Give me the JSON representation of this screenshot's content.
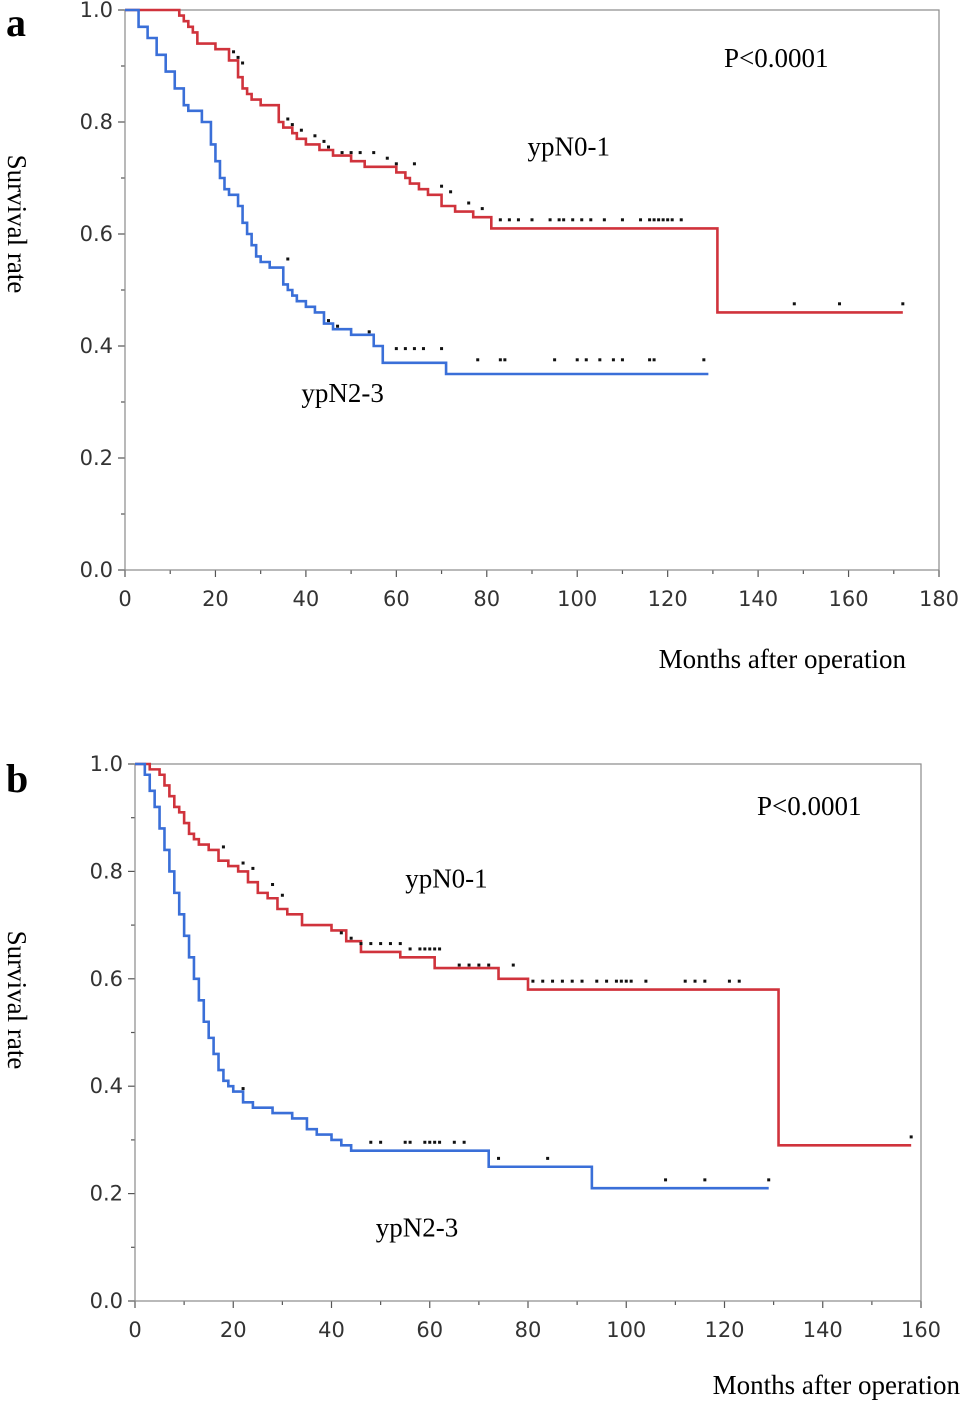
{
  "chart_data": [
    {
      "type": "line",
      "panel_label": "a",
      "title": "",
      "xlabel": "Months after operation",
      "ylabel": "Survival rate",
      "xlim": [
        0,
        180
      ],
      "ylim": [
        0,
        1
      ],
      "xticks": [
        0,
        20,
        40,
        60,
        80,
        100,
        120,
        140,
        160,
        180
      ],
      "xtick_labels": [
        "0",
        "20",
        "40",
        "60",
        "80",
        "100",
        "120",
        "140",
        "160",
        "180"
      ],
      "yticks": [
        0,
        0.2,
        0.4,
        0.6,
        0.8,
        1.0
      ],
      "ytick_labels": [
        "0.0",
        "0.2",
        "0.4",
        "0.6",
        "0.8",
        "1.0"
      ],
      "annotation": "P<0.0001",
      "series": [
        {
          "name": "ypN0-1",
          "color": "#d0333c",
          "step_x": [
            0,
            11,
            12,
            13,
            14,
            15,
            16,
            20,
            23,
            25,
            26,
            27,
            28,
            30,
            34,
            35,
            37,
            38,
            40,
            43,
            46,
            50,
            53,
            57,
            60,
            62,
            63,
            65,
            67,
            70,
            73,
            77,
            81,
            131,
            172
          ],
          "step_y": [
            1.0,
            1.0,
            0.99,
            0.98,
            0.97,
            0.96,
            0.94,
            0.93,
            0.91,
            0.88,
            0.86,
            0.85,
            0.84,
            0.83,
            0.8,
            0.79,
            0.78,
            0.77,
            0.76,
            0.75,
            0.74,
            0.73,
            0.72,
            0.72,
            0.71,
            0.7,
            0.69,
            0.68,
            0.67,
            0.65,
            0.64,
            0.63,
            0.61,
            0.46,
            0.46
          ],
          "censor_x": [
            24,
            25,
            26,
            36,
            37,
            39,
            42,
            44,
            45,
            48,
            50,
            52,
            55,
            58,
            60,
            64,
            70,
            72,
            76,
            79,
            83,
            85,
            87,
            90,
            94,
            96,
            97,
            99,
            101,
            103,
            106,
            110,
            114,
            116,
            117,
            118,
            119,
            120,
            121,
            123,
            148,
            158,
            172
          ],
          "censor_y": [
            0.92,
            0.91,
            0.9,
            0.8,
            0.79,
            0.78,
            0.77,
            0.76,
            0.75,
            0.74,
            0.74,
            0.74,
            0.74,
            0.73,
            0.72,
            0.72,
            0.68,
            0.67,
            0.65,
            0.64,
            0.62,
            0.62,
            0.62,
            0.62,
            0.62,
            0.62,
            0.62,
            0.62,
            0.62,
            0.62,
            0.62,
            0.62,
            0.62,
            0.62,
            0.62,
            0.62,
            0.62,
            0.62,
            0.62,
            0.62,
            0.47,
            0.47,
            0.47
          ]
        },
        {
          "name": "ypN2-3",
          "color": "#3a6fd8",
          "step_x": [
            0,
            3,
            5,
            7,
            9,
            11,
            13,
            14,
            17,
            19,
            20,
            21,
            22,
            23,
            25,
            26,
            27,
            28,
            29,
            30,
            32,
            35,
            36,
            37,
            38,
            40,
            42,
            44,
            46,
            50,
            55,
            57,
            71,
            129
          ],
          "step_y": [
            1.0,
            0.97,
            0.95,
            0.92,
            0.89,
            0.86,
            0.83,
            0.82,
            0.8,
            0.76,
            0.73,
            0.7,
            0.68,
            0.67,
            0.65,
            0.62,
            0.6,
            0.58,
            0.56,
            0.55,
            0.54,
            0.51,
            0.5,
            0.49,
            0.48,
            0.47,
            0.46,
            0.44,
            0.43,
            0.42,
            0.4,
            0.37,
            0.35,
            0.35
          ],
          "censor_x": [
            36,
            45,
            47,
            54,
            60,
            62,
            64,
            66,
            70,
            78,
            83,
            84,
            95,
            100,
            102,
            105,
            108,
            110,
            116,
            117,
            128
          ],
          "censor_y": [
            0.55,
            0.44,
            0.43,
            0.42,
            0.39,
            0.39,
            0.39,
            0.39,
            0.39,
            0.37,
            0.37,
            0.37,
            0.37,
            0.37,
            0.37,
            0.37,
            0.37,
            0.37,
            0.37,
            0.37,
            0.37
          ]
        }
      ],
      "labels": [
        {
          "text": "ypN0-1",
          "x": 89,
          "y": 0.74
        },
        {
          "text": "ypN2-3",
          "x": 39,
          "y": 0.3
        }
      ]
    },
    {
      "type": "line",
      "panel_label": "b",
      "title": "",
      "xlabel": "Months after operation",
      "ylabel": "Survival rate",
      "xlim": [
        0,
        160
      ],
      "ylim": [
        0,
        1
      ],
      "xticks": [
        0,
        20,
        40,
        60,
        80,
        100,
        120,
        140,
        160
      ],
      "xtick_labels": [
        "0",
        "20",
        "40",
        "60",
        "80",
        "100",
        "120",
        "140",
        "160"
      ],
      "yticks": [
        0,
        0.2,
        0.4,
        0.6,
        0.8,
        1.0
      ],
      "ytick_labels": [
        "0.0",
        "0.2",
        "0.4",
        "0.6",
        "0.8",
        "1.0"
      ],
      "annotation": "P<0.0001",
      "series": [
        {
          "name": "ypN0-1",
          "color": "#d0333c",
          "step_x": [
            0,
            3,
            5,
            6,
            7,
            8,
            9,
            10,
            11,
            12,
            13,
            15,
            17,
            19,
            21,
            23,
            25,
            27,
            29,
            31,
            34,
            40,
            43,
            46,
            54,
            61,
            74,
            80,
            131,
            158
          ],
          "step_y": [
            1.0,
            0.99,
            0.98,
            0.96,
            0.94,
            0.92,
            0.91,
            0.89,
            0.87,
            0.86,
            0.85,
            0.84,
            0.82,
            0.81,
            0.8,
            0.78,
            0.76,
            0.75,
            0.73,
            0.72,
            0.7,
            0.69,
            0.67,
            0.65,
            0.64,
            0.62,
            0.6,
            0.58,
            0.29,
            0.29
          ],
          "censor_x": [
            18,
            22,
            24,
            28,
            30,
            42,
            44,
            46,
            48,
            50,
            52,
            54,
            56,
            58,
            59,
            60,
            61,
            62,
            66,
            68,
            70,
            72,
            77,
            81,
            83,
            85,
            87,
            89,
            91,
            94,
            96,
            98,
            99,
            100,
            101,
            104,
            112,
            114,
            116,
            121,
            123,
            158
          ],
          "censor_y": [
            0.84,
            0.81,
            0.8,
            0.77,
            0.75,
            0.68,
            0.67,
            0.66,
            0.66,
            0.66,
            0.66,
            0.66,
            0.65,
            0.65,
            0.65,
            0.65,
            0.65,
            0.65,
            0.62,
            0.62,
            0.62,
            0.62,
            0.62,
            0.59,
            0.59,
            0.59,
            0.59,
            0.59,
            0.59,
            0.59,
            0.59,
            0.59,
            0.59,
            0.59,
            0.59,
            0.59,
            0.59,
            0.59,
            0.59,
            0.59,
            0.59,
            0.3
          ]
        },
        {
          "name": "ypN2-3",
          "color": "#3a6fd8",
          "step_x": [
            0,
            2,
            3,
            4,
            5,
            6,
            7,
            8,
            9,
            10,
            11,
            12,
            13,
            14,
            15,
            16,
            17,
            18,
            19,
            20,
            22,
            24,
            28,
            32,
            35,
            37,
            40,
            42,
            44,
            72,
            93,
            129
          ],
          "step_y": [
            1.0,
            0.98,
            0.95,
            0.92,
            0.88,
            0.84,
            0.8,
            0.76,
            0.72,
            0.68,
            0.64,
            0.6,
            0.56,
            0.52,
            0.49,
            0.46,
            0.43,
            0.41,
            0.4,
            0.39,
            0.37,
            0.36,
            0.35,
            0.34,
            0.32,
            0.31,
            0.3,
            0.29,
            0.28,
            0.25,
            0.21,
            0.21
          ],
          "censor_x": [
            22,
            48,
            50,
            55,
            56,
            59,
            60,
            61,
            62,
            65,
            67,
            74,
            84,
            108,
            116,
            129
          ],
          "censor_y": [
            0.39,
            0.29,
            0.29,
            0.29,
            0.29,
            0.29,
            0.29,
            0.29,
            0.29,
            0.29,
            0.29,
            0.26,
            0.26,
            0.22,
            0.22,
            0.22
          ]
        }
      ],
      "labels": [
        {
          "text": "ypN0-1",
          "x": 55,
          "y": 0.77
        },
        {
          "text": "ypN2-3",
          "x": 49,
          "y": 0.12
        }
      ]
    }
  ]
}
